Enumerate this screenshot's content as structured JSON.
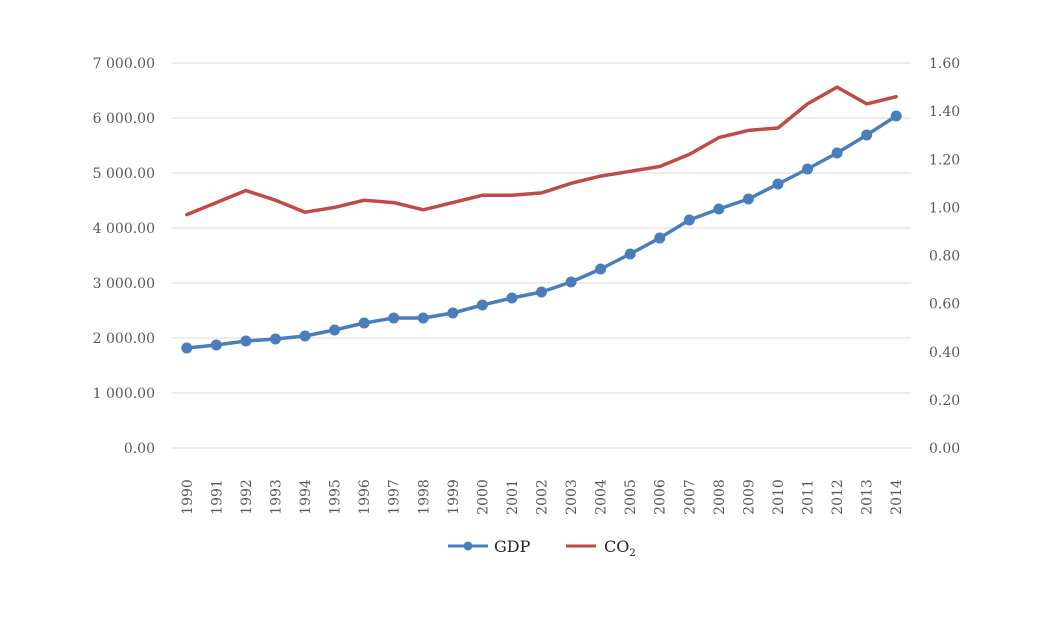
{
  "chart_data": {
    "type": "line",
    "title": "",
    "xlabel": "",
    "ylabel": "",
    "y2label": "",
    "categories": [
      "1990",
      "1991",
      "1992",
      "1993",
      "1994",
      "1995",
      "1996",
      "1997",
      "1998",
      "1999",
      "2000",
      "2001",
      "2002",
      "2003",
      "2004",
      "2005",
      "2006",
      "2007",
      "2008",
      "2009",
      "2010",
      "2011",
      "2012",
      "2013",
      "2014"
    ],
    "ylim": [
      0,
      7000
    ],
    "y_ticks": [
      "0.00",
      "1 000.00",
      "2 000.00",
      "3 000.00",
      "4 000.00",
      "5 000.00",
      "6 000.00",
      "7 000.00"
    ],
    "y_tick_values": [
      0,
      1000,
      2000,
      3000,
      4000,
      5000,
      6000,
      7000
    ],
    "y2lim": [
      0,
      1.6
    ],
    "y2_ticks": [
      "0.00",
      "0.20",
      "0.40",
      "0.60",
      "0.80",
      "1.00",
      "1.20",
      "1.40",
      "1.60"
    ],
    "y2_tick_values": [
      0,
      0.2,
      0.4,
      0.6,
      0.8,
      1.0,
      1.2,
      1.4,
      1.6
    ],
    "grid": true,
    "legend_position": "bottom",
    "series": [
      {
        "name": "GDP",
        "axis": "left",
        "color": "#4a7ebb",
        "markers": true,
        "values": [
          1818,
          1873,
          1945,
          1982,
          2036,
          2145,
          2273,
          2364,
          2364,
          2455,
          2600,
          2727,
          2836,
          3018,
          3255,
          3527,
          3818,
          4145,
          4345,
          4527,
          4800,
          5073,
          5364,
          5691,
          6036
        ]
      },
      {
        "name": "CO2",
        "axis": "right",
        "color": "#be4b48",
        "markers": false,
        "values": [
          0.97,
          1.02,
          1.07,
          1.03,
          0.98,
          1.0,
          1.03,
          1.02,
          0.99,
          1.02,
          1.05,
          1.05,
          1.06,
          1.1,
          1.13,
          1.15,
          1.17,
          1.22,
          1.29,
          1.32,
          1.33,
          1.43,
          1.5,
          1.43,
          1.46
        ]
      }
    ]
  },
  "legend": {
    "gdp_label": "GDP",
    "co2_label_main": "CO",
    "co2_label_sub": "2"
  }
}
